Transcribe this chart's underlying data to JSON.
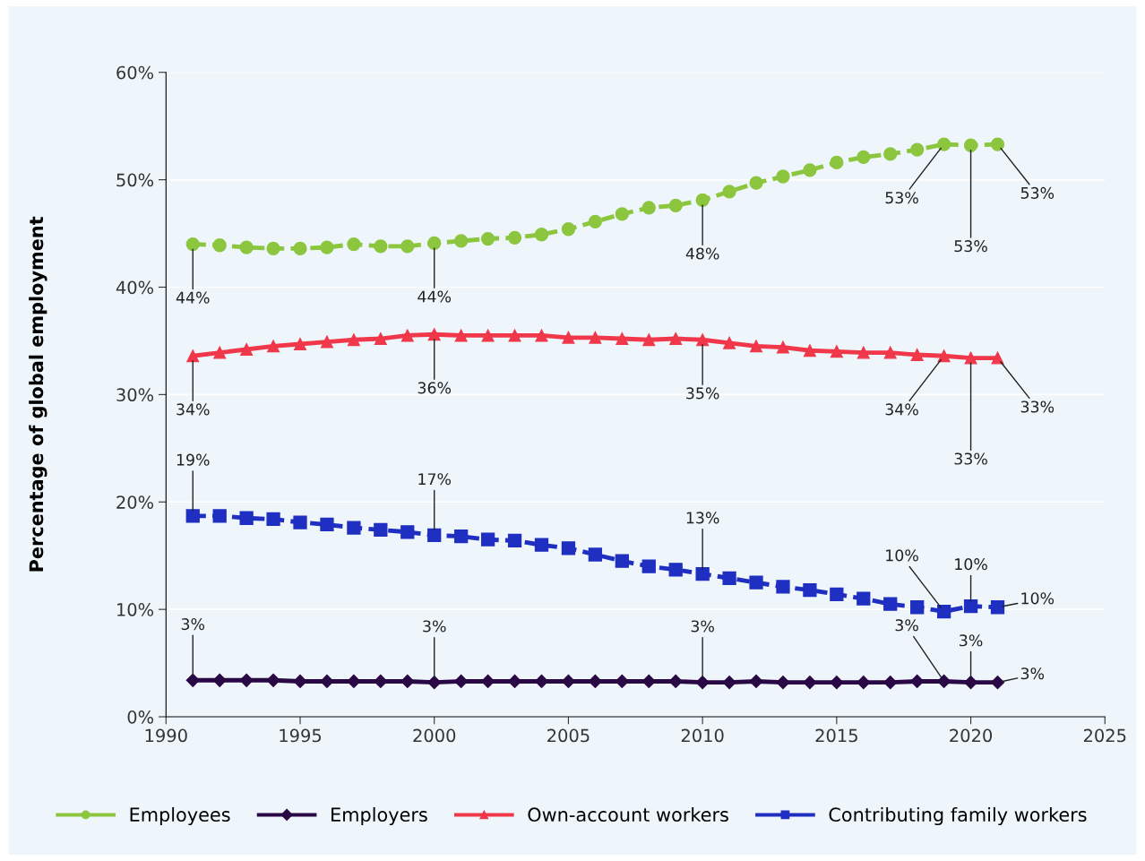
{
  "chart_data": {
    "type": "line",
    "ylabel": "Percentage of global employment",
    "x": [
      1991,
      1992,
      1993,
      1994,
      1995,
      1996,
      1997,
      1998,
      1999,
      2000,
      2001,
      2002,
      2003,
      2004,
      2005,
      2006,
      2007,
      2008,
      2009,
      2010,
      2011,
      2012,
      2013,
      2014,
      2015,
      2016,
      2017,
      2018,
      2019,
      2020,
      2021
    ],
    "series": [
      {
        "name": "Employees",
        "color": "#8cc63f",
        "marker": "circle",
        "line_style": "dashed",
        "values": [
          44.0,
          43.9,
          43.7,
          43.6,
          43.6,
          43.7,
          44.0,
          43.8,
          43.8,
          44.1,
          44.3,
          44.5,
          44.6,
          44.9,
          45.4,
          46.1,
          46.8,
          47.4,
          47.6,
          48.1,
          48.9,
          49.7,
          50.3,
          50.9,
          51.6,
          52.1,
          52.4,
          52.8,
          53.3,
          53.2,
          53.3
        ],
        "value_labels": [
          "44%",
          null,
          null,
          null,
          null,
          null,
          null,
          null,
          null,
          "44%",
          null,
          null,
          null,
          null,
          null,
          null,
          null,
          null,
          null,
          "48%",
          null,
          null,
          null,
          null,
          null,
          null,
          null,
          null,
          "53%",
          "53%",
          "53%"
        ]
      },
      {
        "name": "Employers",
        "color": "#2a0845",
        "marker": "diamond",
        "line_style": "solid",
        "values": [
          3.4,
          3.4,
          3.4,
          3.4,
          3.3,
          3.3,
          3.3,
          3.3,
          3.3,
          3.2,
          3.3,
          3.3,
          3.3,
          3.3,
          3.3,
          3.3,
          3.3,
          3.3,
          3.3,
          3.2,
          3.2,
          3.3,
          3.2,
          3.2,
          3.2,
          3.2,
          3.2,
          3.3,
          3.3,
          3.2,
          3.2
        ],
        "value_labels": [
          "3%",
          null,
          null,
          null,
          null,
          null,
          null,
          null,
          null,
          "3%",
          null,
          null,
          null,
          null,
          null,
          null,
          null,
          null,
          null,
          "3%",
          null,
          null,
          null,
          null,
          null,
          null,
          null,
          null,
          "3%",
          "3%",
          "3%"
        ]
      },
      {
        "name": "Own-account workers",
        "color": "#f0384a",
        "marker": "triangle",
        "line_style": "solid",
        "values": [
          33.6,
          33.9,
          34.2,
          34.5,
          34.7,
          34.9,
          35.1,
          35.2,
          35.5,
          35.6,
          35.5,
          35.5,
          35.5,
          35.5,
          35.3,
          35.3,
          35.2,
          35.1,
          35.2,
          35.1,
          34.8,
          34.5,
          34.4,
          34.1,
          34.0,
          33.9,
          33.9,
          33.7,
          33.6,
          33.4,
          33.4
        ],
        "value_labels": [
          "34%",
          null,
          null,
          null,
          null,
          null,
          null,
          null,
          null,
          "36%",
          null,
          null,
          null,
          null,
          null,
          null,
          null,
          null,
          null,
          "35%",
          null,
          null,
          null,
          null,
          null,
          null,
          null,
          null,
          "34%",
          "33%",
          "33%"
        ]
      },
      {
        "name": "Contributing family workers",
        "color": "#1f2fc1",
        "marker": "square",
        "line_style": "dashed",
        "values": [
          18.7,
          18.7,
          18.5,
          18.4,
          18.1,
          17.9,
          17.6,
          17.4,
          17.2,
          16.9,
          16.8,
          16.5,
          16.4,
          16.0,
          15.7,
          15.1,
          14.5,
          14.0,
          13.7,
          13.3,
          12.9,
          12.5,
          12.1,
          11.8,
          11.4,
          11.0,
          10.5,
          10.2,
          9.8,
          10.3,
          10.2
        ],
        "value_labels": [
          "19%",
          null,
          null,
          null,
          null,
          null,
          null,
          null,
          null,
          "17%",
          null,
          null,
          null,
          null,
          null,
          null,
          null,
          null,
          null,
          "13%",
          null,
          null,
          null,
          null,
          null,
          null,
          null,
          null,
          "10%",
          "10%",
          "10%"
        ]
      }
    ],
    "xlim": [
      1990,
      2025
    ],
    "xticks": [
      1990,
      1995,
      2000,
      2005,
      2010,
      2015,
      2020,
      2025
    ],
    "ylim": [
      0,
      60
    ],
    "yticks": [
      {
        "value": 0,
        "label": "0%"
      },
      {
        "value": 10,
        "label": "10%"
      },
      {
        "value": 20,
        "label": "20%"
      },
      {
        "value": 30,
        "label": "30%"
      },
      {
        "value": 40,
        "label": "40%"
      },
      {
        "value": 50,
        "label": "50%"
      },
      {
        "value": 60,
        "label": "60%"
      }
    ],
    "grid": "y",
    "legend": "bottom"
  }
}
